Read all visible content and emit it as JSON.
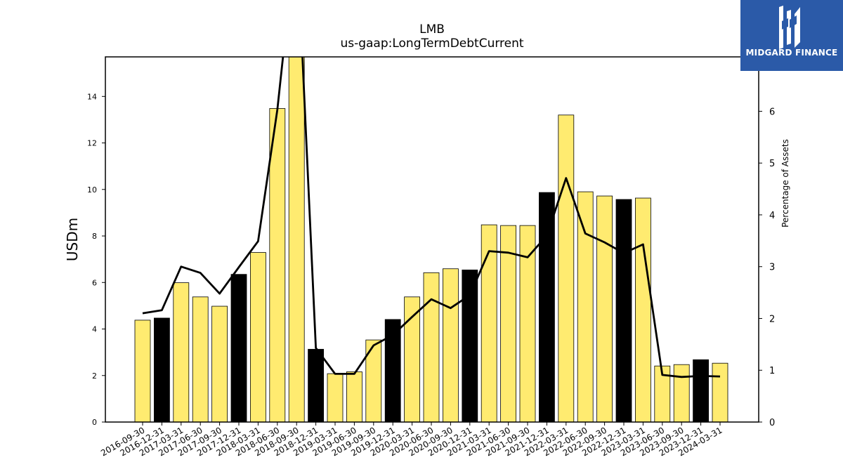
{
  "chart_data": {
    "type": "bar",
    "title": "LMB",
    "subtitle": "us-gaap:LongTermDebtCurrent",
    "ylabel": "USDm",
    "y2label": "Percentage of Assets",
    "ylim": [
      0,
      15.7
    ],
    "y2lim": [
      0,
      7.05
    ],
    "yticks": [
      0,
      2,
      4,
      6,
      8,
      10,
      12,
      14
    ],
    "y2ticks": [
      0,
      1,
      2,
      3,
      4,
      5,
      6
    ],
    "categories": [
      "2016-09-30",
      "2016-12-31",
      "2017-03-31",
      "2017-06-30",
      "2017-09-30",
      "2017-12-31",
      "2018-03-31",
      "2018-06-30",
      "2018-09-30",
      "2018-12-31",
      "2019-03-31",
      "2019-06-30",
      "2019-09-30",
      "2019-12-31",
      "2020-03-31",
      "2020-06-30",
      "2020-09-30",
      "2020-12-31",
      "2021-03-31",
      "2021-06-30",
      "2021-09-30",
      "2021-12-31",
      "2022-03-31",
      "2022-06-30",
      "2022-09-30",
      "2022-12-31",
      "2023-03-31",
      "2023-06-30",
      "2023-09-30",
      "2023-12-31",
      "2024-03-31"
    ],
    "series": [
      {
        "type": "bar",
        "values": [
          4.38,
          4.47,
          5.99,
          5.38,
          4.98,
          6.35,
          7.29,
          13.48,
          16.5,
          3.13,
          2.08,
          2.16,
          3.53,
          4.41,
          5.38,
          6.42,
          6.59,
          6.54,
          8.48,
          8.45,
          8.45,
          9.87,
          13.2,
          9.9,
          9.72,
          9.57,
          9.63,
          2.41,
          2.47,
          2.68,
          2.53
        ],
        "highlight": [
          false,
          true,
          false,
          false,
          false,
          true,
          false,
          false,
          false,
          true,
          false,
          false,
          false,
          true,
          false,
          false,
          false,
          true,
          false,
          false,
          false,
          true,
          false,
          false,
          false,
          true,
          false,
          false,
          false,
          true,
          false
        ],
        "color": "#ffeb70",
        "highlight_color": "#000000"
      },
      {
        "type": "line",
        "axis": "right",
        "values": [
          2.1,
          2.16,
          3.0,
          2.88,
          2.48,
          2.99,
          3.49,
          6.03,
          9.5,
          1.43,
          0.93,
          0.93,
          1.48,
          1.68,
          2.03,
          2.37,
          2.2,
          2.45,
          3.3,
          3.27,
          3.18,
          3.6,
          4.71,
          3.64,
          3.47,
          3.26,
          3.43,
          0.91,
          0.87,
          0.89,
          0.88
        ],
        "color": "#000000"
      }
    ]
  },
  "logo": {
    "text": "MIDGARD FINANCE",
    "color": "#2b5aa8"
  }
}
